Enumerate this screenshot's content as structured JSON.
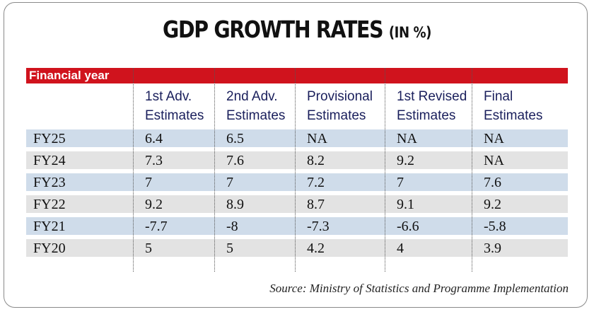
{
  "title": "GDP GROWTH RATES",
  "title_unit": "(IN %)",
  "header_label": "Financial year",
  "columns": [
    {
      "line1": "1st Adv.",
      "line2": "Estimates"
    },
    {
      "line1": "2nd Adv.",
      "line2": "Estimates"
    },
    {
      "line1": "Provisional",
      "line2": "Estimates"
    },
    {
      "line1": "1st Revised",
      "line2": "Estimates"
    },
    {
      "line1": "Final",
      "line2": "Estimates"
    }
  ],
  "rows": [
    {
      "year": "FY25",
      "values": [
        "6.4",
        "6.5",
        "NA",
        "NA",
        "NA"
      ]
    },
    {
      "year": "FY24",
      "values": [
        "7.3",
        "7.6",
        "8.2",
        "9.2",
        "NA"
      ]
    },
    {
      "year": "FY23",
      "values": [
        "7",
        "7",
        "7.2",
        "7",
        "7.6"
      ]
    },
    {
      "year": "FY22",
      "values": [
        "9.2",
        "8.9",
        "8.7",
        "9.1",
        "9.2"
      ]
    },
    {
      "year": "FY21",
      "values": [
        "-7.7",
        "-8",
        "-7.3",
        "-6.6",
        "-5.8"
      ]
    },
    {
      "year": "FY20",
      "values": [
        "5",
        "5",
        "4.2",
        "4",
        "3.9"
      ]
    }
  ],
  "source": "Source: Ministry of Statistics and Programme Implementation",
  "colors": {
    "header_bar": "#d0131d",
    "row_blue": "#cfdcea",
    "row_grey": "#e3e3e3",
    "column_heading": "#1a1f5c"
  },
  "chart_data": {
    "type": "table",
    "title": "GDP GROWTH RATES (IN %)",
    "row_header": "Financial year",
    "columns": [
      "1st Adv. Estimates",
      "2nd Adv. Estimates",
      "Provisional Estimates",
      "1st Revised Estimates",
      "Final Estimates"
    ],
    "rows": [
      "FY25",
      "FY24",
      "FY23",
      "FY22",
      "FY21",
      "FY20"
    ],
    "values": [
      [
        "6.4",
        "6.5",
        "NA",
        "NA",
        "NA"
      ],
      [
        "7.3",
        "7.6",
        "8.2",
        "9.2",
        "NA"
      ],
      [
        "7",
        "7",
        "7.2",
        "7",
        "7.6"
      ],
      [
        "9.2",
        "8.9",
        "8.7",
        "9.1",
        "9.2"
      ],
      [
        "-7.7",
        "-8",
        "-7.3",
        "-6.6",
        "-5.8"
      ],
      [
        "5",
        "5",
        "4.2",
        "4",
        "3.9"
      ]
    ],
    "source": "Source: Ministry of Statistics and Programme Implementation"
  }
}
